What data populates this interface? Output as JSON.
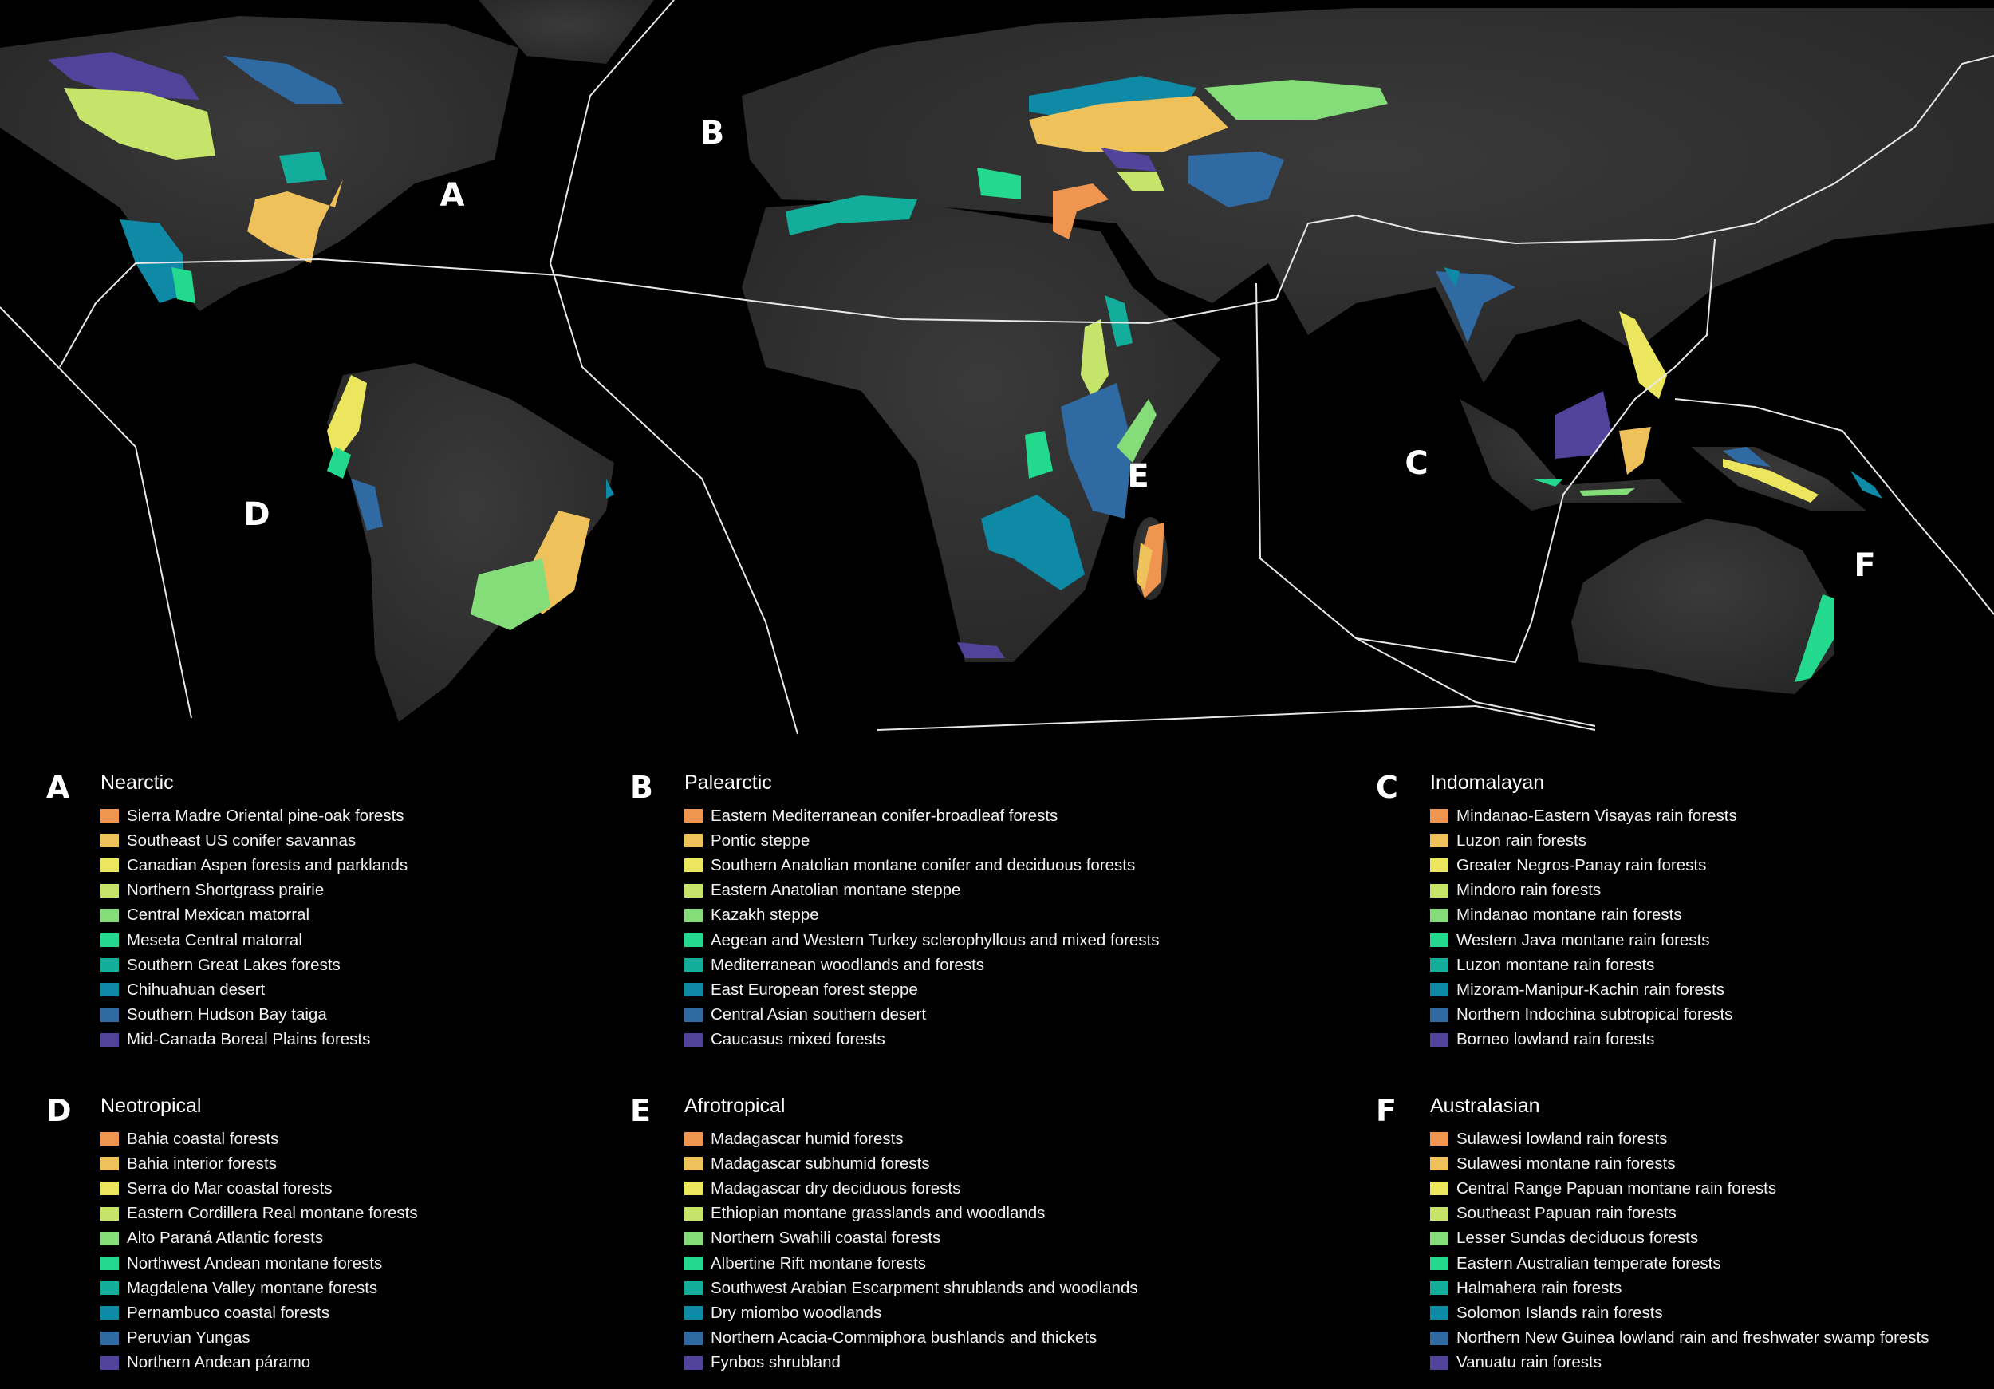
{
  "palette": [
    "#f0954f",
    "#eec15a",
    "#ece65e",
    "#c6e46a",
    "#84dd79",
    "#22d98e",
    "#13ad9b",
    "#0e8aa6",
    "#2f6aa3",
    "#52439a"
  ],
  "map": {
    "background": "#000000",
    "land_color": "#2e2e2e",
    "boundary_color": "#e8e8e8",
    "region_letters": [
      "A",
      "B",
      "C",
      "D",
      "E",
      "F"
    ]
  },
  "legend": [
    {
      "letter": "A",
      "title": "Nearctic",
      "items": [
        "Sierra Madre Oriental pine-oak forests",
        "Southeast US conifer savannas",
        "Canadian Aspen forests and parklands",
        "Northern Shortgrass prairie",
        "Central Mexican matorral",
        "Meseta Central matorral",
        "Southern Great Lakes forests",
        "Chihuahuan desert",
        "Southern Hudson Bay taiga",
        "Mid-Canada Boreal Plains forests"
      ]
    },
    {
      "letter": "B",
      "title": "Palearctic",
      "items": [
        "Eastern Mediterranean conifer-broadleaf forests",
        "Pontic steppe",
        "Southern Anatolian montane conifer and deciduous forests",
        "Eastern Anatolian montane steppe",
        "Kazakh steppe",
        "Aegean and Western Turkey sclerophyllous and mixed forests",
        "Mediterranean woodlands and forests",
        "East European forest steppe",
        "Central Asian southern desert",
        "Caucasus mixed forests"
      ]
    },
    {
      "letter": "C",
      "title": "Indomalayan",
      "items": [
        "Mindanao-Eastern Visayas rain forests",
        "Luzon rain forests",
        "Greater Negros-Panay rain forests",
        "Mindoro rain forests",
        "Mindanao montane rain forests",
        "Western Java montane rain forests",
        "Luzon montane rain forests",
        "Mizoram-Manipur-Kachin rain forests",
        "Northern Indochina subtropical forests",
        "Borneo lowland rain forests"
      ]
    },
    {
      "letter": "D",
      "title": "Neotropical",
      "items": [
        "Bahia coastal forests",
        "Bahia interior forests",
        "Serra do Mar coastal forests",
        "Eastern Cordillera Real montane forests",
        "Alto Paraná Atlantic forests",
        "Northwest Andean montane forests",
        "Magdalena Valley montane forests",
        "Pernambuco coastal forests",
        "Peruvian Yungas",
        "Northern Andean páramo"
      ]
    },
    {
      "letter": "E",
      "title": "Afrotropical",
      "items": [
        "Madagascar humid forests",
        "Madagascar subhumid forests",
        "Madagascar dry deciduous forests",
        "Ethiopian montane grasslands and woodlands",
        "Northern Swahili coastal forests",
        "Albertine Rift montane forests",
        "Southwest Arabian Escarpment shrublands and woodlands",
        "Dry miombo woodlands",
        "Northern Acacia-Commiphora bushlands and thickets",
        "Fynbos shrubland"
      ]
    },
    {
      "letter": "F",
      "title": "Australasian",
      "items": [
        "Sulawesi lowland rain forests",
        "Sulawesi montane rain forests",
        "Central Range Papuan montane rain forests",
        "Southeast Papuan rain forests",
        "Lesser Sundas deciduous forests",
        "Eastern Australian temperate forests",
        "Halmahera rain forests",
        "Solomon Islands rain forests",
        "Northern New Guinea lowland rain and freshwater swamp forests",
        "Vanuatu rain forests"
      ]
    }
  ]
}
